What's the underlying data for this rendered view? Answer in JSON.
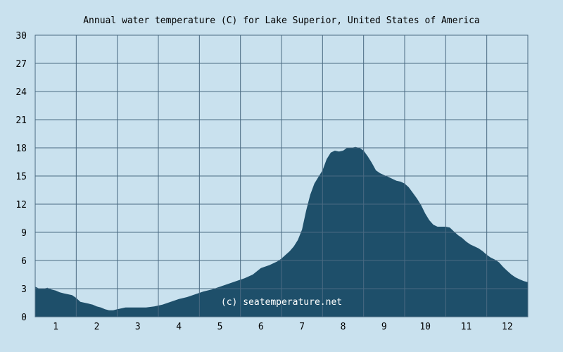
{
  "chart_data": {
    "type": "area",
    "title": "Annual water temperature (C) for Lake Superior, United States of America",
    "watermark": "(c) seatemperature.net",
    "xlabel": "",
    "ylabel": "",
    "x_tick_labels": [
      "1",
      "2",
      "3",
      "4",
      "5",
      "6",
      "7",
      "8",
      "9",
      "10",
      "11",
      "12"
    ],
    "y_ticks": [
      0,
      3,
      6,
      9,
      12,
      15,
      18,
      21,
      24,
      27,
      30
    ],
    "ylim": [
      0,
      30
    ],
    "xlim": [
      0.5,
      12.5
    ],
    "grid": true,
    "colors": {
      "background": "#c9e1ee",
      "fill": "#1e4f6a",
      "grid": "#4a6a82"
    },
    "series": [
      {
        "x": [
          0.5,
          0.6,
          0.7,
          0.8,
          0.9,
          1.0,
          1.1,
          1.2,
          1.3,
          1.4,
          1.5,
          1.6,
          1.7,
          1.8,
          1.9,
          2.0,
          2.1,
          2.2,
          2.3,
          2.4,
          2.5,
          2.6,
          2.7,
          2.8,
          2.9,
          3.0,
          3.2,
          3.4,
          3.5,
          3.6,
          3.8,
          4.0,
          4.2,
          4.4,
          4.6,
          4.8,
          5.0,
          5.2,
          5.4,
          5.6,
          5.8,
          6.0,
          6.2,
          6.4,
          6.5,
          6.6,
          6.7,
          6.8,
          6.9,
          7.0,
          7.1,
          7.2,
          7.3,
          7.4,
          7.5,
          7.6,
          7.7,
          7.8,
          7.9,
          8.0,
          8.1,
          8.2,
          8.3,
          8.4,
          8.5,
          8.6,
          8.7,
          8.8,
          8.9,
          9.0,
          9.1,
          9.2,
          9.3,
          9.4,
          9.5,
          9.6,
          9.7,
          9.8,
          9.9,
          10.0,
          10.1,
          10.2,
          10.3,
          10.4,
          10.5,
          10.6,
          10.7,
          10.8,
          10.9,
          11.0,
          11.1,
          11.2,
          11.3,
          11.4,
          11.5,
          11.6,
          11.7,
          11.8,
          11.9,
          12.0,
          12.1,
          12.2,
          12.3,
          12.4,
          12.5
        ],
        "values": [
          3.2,
          3.0,
          3.0,
          3.1,
          2.9,
          2.8,
          2.6,
          2.5,
          2.4,
          2.3,
          2.0,
          1.6,
          1.5,
          1.4,
          1.3,
          1.1,
          1.0,
          0.8,
          0.7,
          0.7,
          0.8,
          0.9,
          1.0,
          1.0,
          1.0,
          1.0,
          1.0,
          1.1,
          1.2,
          1.3,
          1.6,
          1.9,
          2.1,
          2.4,
          2.7,
          2.9,
          3.2,
          3.5,
          3.8,
          4.1,
          4.5,
          5.2,
          5.5,
          5.9,
          6.2,
          6.6,
          7.0,
          7.5,
          8.2,
          9.3,
          11.3,
          13.0,
          14.2,
          14.9,
          15.6,
          16.8,
          17.5,
          17.7,
          17.6,
          17.7,
          18.0,
          18.0,
          18.1,
          18.0,
          17.7,
          17.1,
          16.4,
          15.6,
          15.3,
          15.1,
          14.9,
          14.7,
          14.5,
          14.4,
          14.2,
          13.8,
          13.2,
          12.6,
          11.9,
          11.0,
          10.3,
          9.8,
          9.6,
          9.6,
          9.6,
          9.5,
          9.1,
          8.7,
          8.4,
          8.0,
          7.7,
          7.5,
          7.3,
          7.0,
          6.6,
          6.3,
          6.1,
          5.8,
          5.3,
          4.9,
          4.5,
          4.2,
          4.0,
          3.8,
          3.7
        ]
      }
    ]
  }
}
